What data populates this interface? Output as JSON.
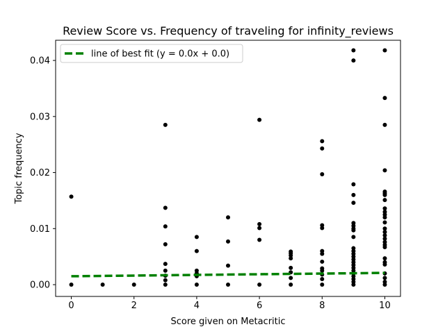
{
  "chart_data": {
    "type": "scatter",
    "title": "Review Score vs. Frequency of traveling for infinity_reviews",
    "xlabel": "Score given on Metacritic",
    "ylabel": "Topic frequency",
    "xlim": [
      -0.5,
      10.5
    ],
    "ylim": [
      -0.0021,
      0.0436
    ],
    "xticks": [
      "0",
      "2",
      "4",
      "6",
      "8",
      "10"
    ],
    "xtick_values": [
      0,
      2,
      4,
      6,
      8,
      10
    ],
    "yticks": [
      "0.00",
      "0.01",
      "0.02",
      "0.03",
      "0.04"
    ],
    "ytick_values": [
      0,
      0.01,
      0.02,
      0.03,
      0.04
    ],
    "grid": false,
    "legend": {
      "placement": "top-left",
      "entries": [
        "line of best fit (y = 0.0x + 0.0)"
      ]
    },
    "series": [
      {
        "type": "scatter",
        "color": "#000000",
        "points": [
          [
            0,
            0
          ],
          [
            0,
            0.0157
          ],
          [
            1,
            0
          ],
          [
            2,
            0
          ],
          [
            3,
            0
          ],
          [
            3,
            0.0008
          ],
          [
            3,
            0.0016
          ],
          [
            3,
            0.0025
          ],
          [
            3,
            0.0037
          ],
          [
            3,
            0.0072
          ],
          [
            3,
            0.0104
          ],
          [
            3,
            0.0137
          ],
          [
            3,
            0.0285
          ],
          [
            4,
            0
          ],
          [
            4,
            0.0015
          ],
          [
            4,
            0.002
          ],
          [
            4,
            0.0025
          ],
          [
            4,
            0.006
          ],
          [
            4,
            0.0085
          ],
          [
            5,
            0
          ],
          [
            5,
            0.0034
          ],
          [
            5,
            0.0077
          ],
          [
            5,
            0.012
          ],
          [
            6,
            0
          ],
          [
            6,
            0.008
          ],
          [
            6,
            0.0101
          ],
          [
            6,
            0.0108
          ],
          [
            6,
            0.0294
          ],
          [
            7,
            0
          ],
          [
            7,
            0.0012
          ],
          [
            7,
            0.0022
          ],
          [
            7,
            0.003
          ],
          [
            7,
            0.0047
          ],
          [
            7,
            0.0052
          ],
          [
            7,
            0.0056
          ],
          [
            7,
            0.0059
          ],
          [
            8,
            0
          ],
          [
            8,
            0.001
          ],
          [
            8,
            0.0018
          ],
          [
            8,
            0.0025
          ],
          [
            8,
            0.0029
          ],
          [
            8,
            0.0041
          ],
          [
            8,
            0.0055
          ],
          [
            8,
            0.006
          ],
          [
            8,
            0.0101
          ],
          [
            8,
            0.0106
          ],
          [
            8,
            0.0197
          ],
          [
            8,
            0.0243
          ],
          [
            8,
            0.0256
          ],
          [
            9,
            0
          ],
          [
            9,
            0.0005
          ],
          [
            9,
            0.001
          ],
          [
            9,
            0.0015
          ],
          [
            9,
            0.002
          ],
          [
            9,
            0.0025
          ],
          [
            9,
            0.003
          ],
          [
            9,
            0.0035
          ],
          [
            9,
            0.004
          ],
          [
            9,
            0.0045
          ],
          [
            9,
            0.005
          ],
          [
            9,
            0.0055
          ],
          [
            9,
            0.006
          ],
          [
            9,
            0.0065
          ],
          [
            9,
            0.0085
          ],
          [
            9,
            0.0097
          ],
          [
            9,
            0.01
          ],
          [
            9,
            0.0105
          ],
          [
            9,
            0.011
          ],
          [
            9,
            0.0146
          ],
          [
            9,
            0.016
          ],
          [
            9,
            0.0179
          ],
          [
            9,
            0.04
          ],
          [
            9,
            0.0418
          ],
          [
            10,
            0
          ],
          [
            10,
            0.0005
          ],
          [
            10,
            0.0012
          ],
          [
            10,
            0.002
          ],
          [
            10,
            0.0036
          ],
          [
            10,
            0.004
          ],
          [
            10,
            0.0047
          ],
          [
            10,
            0.0067
          ],
          [
            10,
            0.0071
          ],
          [
            10,
            0.0076
          ],
          [
            10,
            0.0082
          ],
          [
            10,
            0.0088
          ],
          [
            10,
            0.0094
          ],
          [
            10,
            0.01
          ],
          [
            10,
            0.0111
          ],
          [
            10,
            0.012
          ],
          [
            10,
            0.0125
          ],
          [
            10,
            0.013
          ],
          [
            10,
            0.0136
          ],
          [
            10,
            0.0151
          ],
          [
            10,
            0.016
          ],
          [
            10,
            0.0163
          ],
          [
            10,
            0.0166
          ],
          [
            10,
            0.0204
          ],
          [
            10,
            0.0285
          ],
          [
            10,
            0.0333
          ],
          [
            10,
            0.0418
          ]
        ]
      },
      {
        "type": "line",
        "name": "line of best fit (y = 0.0x + 0.0)",
        "style": "dashed",
        "color": "#008000",
        "x": [
          0,
          10
        ],
        "y": [
          0.0015,
          0.0021
        ]
      }
    ]
  }
}
